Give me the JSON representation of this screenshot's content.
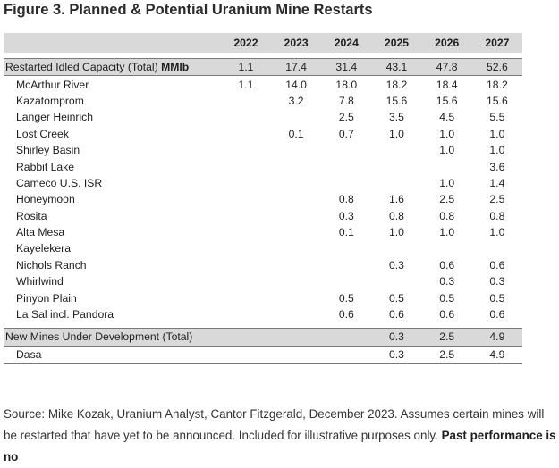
{
  "figure": {
    "title": "Figure 3. Planned & Potential Uranium Mine Restarts"
  },
  "table": {
    "years": [
      "2022",
      "2023",
      "2024",
      "2025",
      "2026",
      "2027"
    ],
    "restarted_total": {
      "label": "Restarted Idled Capacity (Total)",
      "unit": "MMlb",
      "values": [
        "1.1",
        "17.4",
        "31.4",
        "43.1",
        "47.8",
        "52.6"
      ]
    },
    "restart_rows": [
      {
        "name": "McArthur River",
        "values": [
          "1.1",
          "14.0",
          "18.0",
          "18.2",
          "18.4",
          "18.2"
        ]
      },
      {
        "name": "Kazatomprom",
        "values": [
          "",
          "3.2",
          "7.8",
          "15.6",
          "15.6",
          "15.6"
        ]
      },
      {
        "name": "Langer Heinrich",
        "values": [
          "",
          "",
          "2.5",
          "3.5",
          "4.5",
          "5.5"
        ]
      },
      {
        "name": "Lost Creek",
        "values": [
          "",
          "0.1",
          "0.7",
          "1.0",
          "1.0",
          "1.0"
        ]
      },
      {
        "name": "Shirley Basin",
        "values": [
          "",
          "",
          "",
          "",
          "1.0",
          "1.0"
        ]
      },
      {
        "name": "Rabbit Lake",
        "values": [
          "",
          "",
          "",
          "",
          "",
          "3.6"
        ]
      },
      {
        "name": "Cameco U.S. ISR",
        "values": [
          "",
          "",
          "",
          "",
          "1.0",
          "1.4"
        ]
      },
      {
        "name": "Honeymoon",
        "values": [
          "",
          "",
          "0.8",
          "1.6",
          "2.5",
          "2.5"
        ]
      },
      {
        "name": "Rosita",
        "values": [
          "",
          "",
          "0.3",
          "0.8",
          "0.8",
          "0.8"
        ]
      },
      {
        "name": "Alta Mesa",
        "values": [
          "",
          "",
          "0.1",
          "1.0",
          "1.0",
          "1.0"
        ]
      },
      {
        "name": "Kayelekera",
        "values": [
          "",
          "",
          "",
          "",
          "",
          ""
        ]
      },
      {
        "name": "Nichols Ranch",
        "values": [
          "",
          "",
          "",
          "0.3",
          "0.6",
          "0.6"
        ]
      },
      {
        "name": "Whirlwind",
        "values": [
          "",
          "",
          "",
          "",
          "0.3",
          "0.3"
        ]
      },
      {
        "name": "Pinyon Plain",
        "values": [
          "",
          "",
          "0.5",
          "0.5",
          "0.5",
          "0.5"
        ]
      },
      {
        "name": "La Sal incl. Pandora",
        "values": [
          "",
          "",
          "0.6",
          "0.6",
          "0.6",
          "0.6"
        ]
      }
    ],
    "new_total": {
      "label": "New Mines Under Development (Total)",
      "values": [
        "",
        "",
        "",
        "0.3",
        "2.5",
        "4.9"
      ]
    },
    "new_rows": [
      {
        "name": "Dasa",
        "values": [
          "",
          "",
          "",
          "0.3",
          "2.5",
          "4.9"
        ]
      }
    ]
  },
  "source_note": {
    "text": "Source: Mike Kozak, Uranium Analyst, Cantor Fitzgerald, December 2023. Assumes certain mines will be restarted that have yet to be announced. Included for illustrative purposes only.",
    "bold_text": "Past performance is no"
  }
}
